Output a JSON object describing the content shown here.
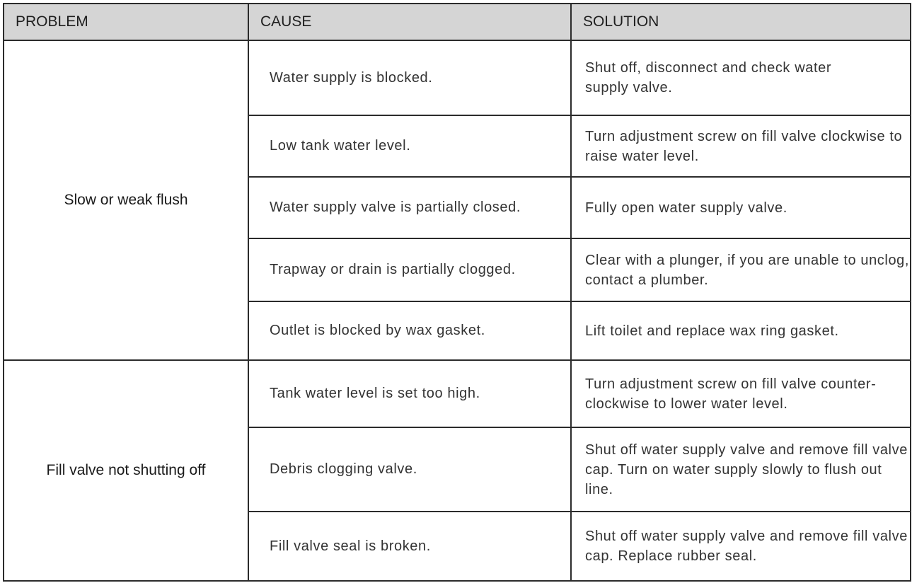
{
  "headers": {
    "problem": "PROBLEM",
    "cause": "CAUSE",
    "solution": "SOLUTION"
  },
  "groups": [
    {
      "problem": "Slow or weak flush",
      "rows": [
        {
          "cause": "Water supply is blocked.",
          "solution": "Shut off, disconnect and check water supply valve."
        },
        {
          "cause": "Low tank water level.",
          "solution": "Turn adjustment screw on fill valve clockwise to raise water level."
        },
        {
          "cause": "Water supply valve is partially closed.",
          "solution": "Fully open water supply valve."
        },
        {
          "cause": "Trapway or drain is partially clogged.",
          "solution": "Clear with a plunger, if you are unable to unclog, contact a plumber."
        },
        {
          "cause": "Outlet is blocked by wax gasket.",
          "solution": "Lift toilet and replace wax ring gasket."
        }
      ]
    },
    {
      "problem": "Fill valve not shutting off",
      "rows": [
        {
          "cause": "Tank water level is set too high.",
          "solution": "Turn adjustment screw on fill valve counter-clockwise to lower water level."
        },
        {
          "cause": "Debris clogging valve.",
          "solution": "Shut off water supply valve and remove fill valve cap. Turn on water supply slowly to flush out line."
        },
        {
          "cause": "Fill valve seal is broken.",
          "solution": "Shut off water supply valve and remove fill valve cap. Replace rubber seal."
        }
      ]
    }
  ]
}
